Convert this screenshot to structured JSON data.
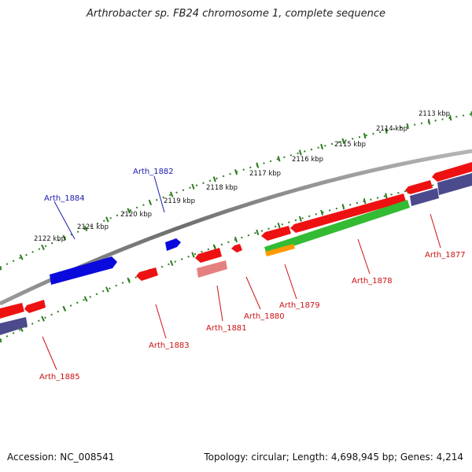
{
  "title": "Arthrobacter sp. FB24 chromosome 1, complete sequence",
  "accession": "Accession: NC_008541",
  "summary": "Topology: circular; Length: 4,698,945 bp; Genes: 4,214",
  "colors": {
    "backbone": "#7a7a7a",
    "tick": "#2e7d20",
    "forward_gene": "#0a0adc",
    "reverse_gene": "#ee1111",
    "faded_gene": "#e58080",
    "green_feature": "#33bb33",
    "orange_feature": "#ff9900",
    "navy_feature": "#4a4a8c",
    "forward_label": "#1a1ab0",
    "reverse_label": "#cc1111"
  },
  "ruler_labels": [
    "2113 kbp",
    "2114 kbp",
    "2115 kbp",
    "2116 kbp",
    "2117 kbp",
    "2118 kbp",
    "2119 kbp",
    "2120 kbp",
    "2121 kbp",
    "2122 kbp"
  ],
  "gene_labels": [
    "Arth_1877",
    "Arth_1878",
    "Arth_1879",
    "Arth_1880",
    "Arth_1881",
    "Arth_1882",
    "Arth_1883",
    "Arth_1884",
    "Arth_1885"
  ]
}
